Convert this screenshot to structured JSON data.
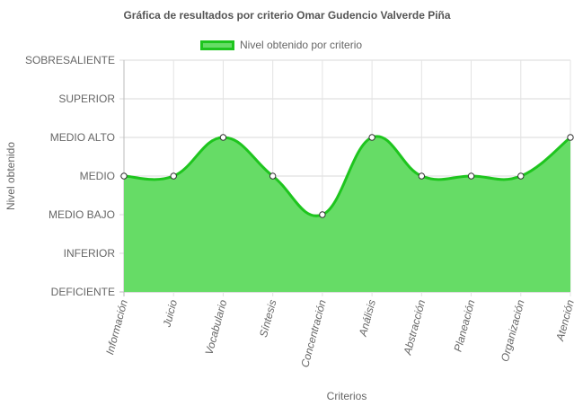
{
  "chart_data": {
    "type": "area",
    "title": "Gráfica de resultados por criterio Omar Gudencio Valverde Piña",
    "xlabel": "Criterios",
    "ylabel": "Nivel obtenido",
    "y_levels": [
      "DEFICIENTE",
      "INFERIOR",
      "MEDIO BAJO",
      "MEDIO",
      "MEDIO ALTO",
      "SUPERIOR",
      "SOBRESALIENTE"
    ],
    "ylim": [
      0,
      6
    ],
    "categories": [
      "Información",
      "Juicio",
      "Vocabulario",
      "Síntesis",
      "Concentración",
      "Análisis",
      "Abstracción",
      "Planeación",
      "Organización",
      "Atención"
    ],
    "series": [
      {
        "name": "Nivel obtenido por criterio",
        "values": [
          "MEDIO",
          "MEDIO",
          "MEDIO ALTO",
          "MEDIO",
          "MEDIO BAJO",
          "MEDIO ALTO",
          "MEDIO",
          "MEDIO",
          "MEDIO",
          "MEDIO ALTO"
        ],
        "value_index": [
          3,
          3,
          4,
          3,
          2,
          4,
          3,
          3,
          3,
          4
        ]
      }
    ],
    "legend_position": "top",
    "grid": true,
    "colors": {
      "fill": "#66dc66",
      "line": "#1ec51e",
      "point_fill": "#ffffff",
      "point_stroke": "#333333"
    }
  }
}
